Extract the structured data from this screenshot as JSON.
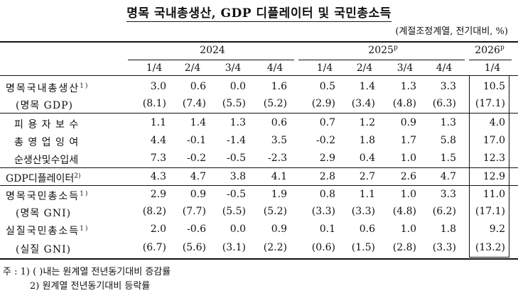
{
  "title": "명목 국내총생산, GDP 디플레이터 및 국민총소득",
  "unit": "(계절조정계열, 전기대비, %)",
  "header": {
    "years": [
      {
        "label": "2024",
        "sup": ""
      },
      {
        "label": "2025",
        "sup": "p"
      },
      {
        "label": "2026",
        "sup": "p"
      }
    ],
    "quarters": [
      "1/4",
      "2/4",
      "3/4",
      "4/4",
      "1/4",
      "2/4",
      "3/4",
      "4/4",
      "1/4"
    ]
  },
  "rows": [
    {
      "label": "명목국내총생산",
      "sup": "1)",
      "values": [
        "3.0",
        "0.6",
        "0.0",
        "1.6",
        "0.5",
        "1.4",
        "1.3",
        "3.3",
        "10.5"
      ]
    },
    {
      "label": "(명목 GDP)",
      "sup": "",
      "values": [
        "(8.1)",
        "(7.4)",
        "(5.5)",
        "(5.2)",
        "(2.9)",
        "(3.4)",
        "(4.8)",
        "(6.3)",
        "(17.1)"
      ]
    },
    {
      "label": "피 용 자 보 수",
      "sup": "",
      "values": [
        "1.1",
        "1.4",
        "1.3",
        "0.6",
        "0.7",
        "1.2",
        "0.9",
        "1.3",
        "4.0"
      ]
    },
    {
      "label": "총 영 업 잉 여",
      "sup": "",
      "values": [
        "4.4",
        "-0.1",
        "-1.4",
        "3.5",
        "-0.2",
        "1.8",
        "1.7",
        "5.8",
        "17.0"
      ]
    },
    {
      "label": "순생산및수입세",
      "sup": "",
      "values": [
        "7.3",
        "-0.2",
        "-0.5",
        "-2.3",
        "2.9",
        "0.4",
        "1.0",
        "1.5",
        "12.3"
      ]
    },
    {
      "label": "GDP디플레이터",
      "sup": "2)",
      "values": [
        "4.3",
        "4.7",
        "3.8",
        "4.1",
        "2.8",
        "2.7",
        "2.6",
        "4.7",
        "12.9"
      ]
    },
    {
      "label": "명목국민총소득",
      "sup": "1)",
      "values": [
        "2.9",
        "0.9",
        "-0.5",
        "1.9",
        "0.8",
        "1.1",
        "1.0",
        "3.3",
        "11.0"
      ]
    },
    {
      "label": "(명목 GNI)",
      "sup": "",
      "values": [
        "(8.2)",
        "(7.7)",
        "(5.5)",
        "(5.2)",
        "(3.3)",
        "(3.3)",
        "(4.8)",
        "(6.2)",
        "(17.1)"
      ]
    },
    {
      "label": "실질국민총소득",
      "sup": "1)",
      "values": [
        "2.0",
        "-0.6",
        "0.0",
        "0.9",
        "0.1",
        "0.6",
        "1.0",
        "1.8",
        "9.2"
      ]
    },
    {
      "label": "(실질 GNI)",
      "sup": "",
      "values": [
        "(6.7)",
        "(5.6)",
        "(3.1)",
        "(2.2)",
        "(0.6)",
        "(1.5)",
        "(2.8)",
        "(3.3)",
        "(13.2)"
      ]
    }
  ],
  "notes": [
    "주 : 1) (   )내는 원계열 전년동기대비 증감률",
    "2) 원계열 전년동기대비 등락률"
  ]
}
